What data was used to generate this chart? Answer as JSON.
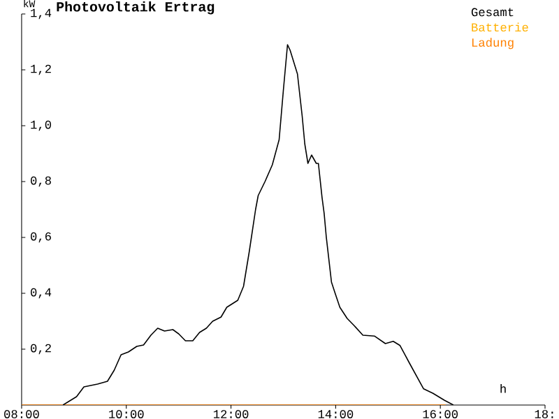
{
  "chart_data": {
    "type": "line",
    "title": "Photovoltaik Ertrag",
    "xlabel": "h",
    "ylabel": "kW",
    "xlim": [
      8,
      18
    ],
    "ylim": [
      0,
      1.4
    ],
    "xticks": [
      {
        "value": 8,
        "label": "08:00"
      },
      {
        "value": 10,
        "label": "10:00"
      },
      {
        "value": 12,
        "label": "12:00"
      },
      {
        "value": 14,
        "label": "14:00"
      },
      {
        "value": 16,
        "label": "16:00"
      },
      {
        "value": 18,
        "label": "18:"
      }
    ],
    "yticks": [
      {
        "value": 0.2,
        "label": "0,2"
      },
      {
        "value": 0.4,
        "label": "0,4"
      },
      {
        "value": 0.6,
        "label": "0,6"
      },
      {
        "value": 0.8,
        "label": "0,8"
      },
      {
        "value": 1.0,
        "label": "1,0"
      },
      {
        "value": 1.2,
        "label": "1,2"
      },
      {
        "value": 1.4,
        "label": "1,4"
      }
    ],
    "grid": false,
    "legend": "top right",
    "marker": "none",
    "line_style": "solid",
    "series": [
      {
        "name": "Gesamt",
        "color": "#000000",
        "x": [
          8.79,
          9.05,
          9.19,
          9.45,
          9.64,
          9.77,
          9.9,
          10.04,
          10.2,
          10.33,
          10.47,
          10.6,
          10.73,
          10.89,
          11.0,
          11.13,
          11.27,
          11.4,
          11.53,
          11.65,
          11.81,
          11.92,
          12.13,
          12.24,
          12.35,
          12.47,
          12.52,
          12.65,
          12.79,
          12.92,
          13.0,
          13.08,
          13.13,
          13.27,
          13.36,
          13.41,
          13.47,
          13.54,
          13.63,
          13.67,
          13.74,
          13.78,
          13.82,
          13.92,
          13.99,
          14.08,
          14.22,
          14.35,
          14.52,
          14.74,
          14.95,
          15.1,
          15.23,
          15.41,
          15.68,
          15.86,
          16.08,
          16.25
        ],
        "values": [
          0,
          0.03,
          0.065,
          0.075,
          0.085,
          0.125,
          0.18,
          0.19,
          0.21,
          0.215,
          0.25,
          0.275,
          0.265,
          0.27,
          0.255,
          0.23,
          0.23,
          0.26,
          0.275,
          0.3,
          0.315,
          0.35,
          0.375,
          0.425,
          0.55,
          0.7,
          0.75,
          0.8,
          0.86,
          0.95,
          1.125,
          1.29,
          1.27,
          1.185,
          1.035,
          0.935,
          0.865,
          0.895,
          0.865,
          0.865,
          0.743,
          0.686,
          0.603,
          0.44,
          0.4,
          0.35,
          0.31,
          0.285,
          0.25,
          0.247,
          0.22,
          0.228,
          0.213,
          0.15,
          0.058,
          0.042,
          0.017,
          0
        ]
      },
      {
        "name": "Batterie",
        "color": "#ffb000"
      },
      {
        "name": "Ladung",
        "color": "#ff8000",
        "x": [
          8,
          16.1
        ],
        "values": [
          0,
          0
        ]
      }
    ]
  }
}
